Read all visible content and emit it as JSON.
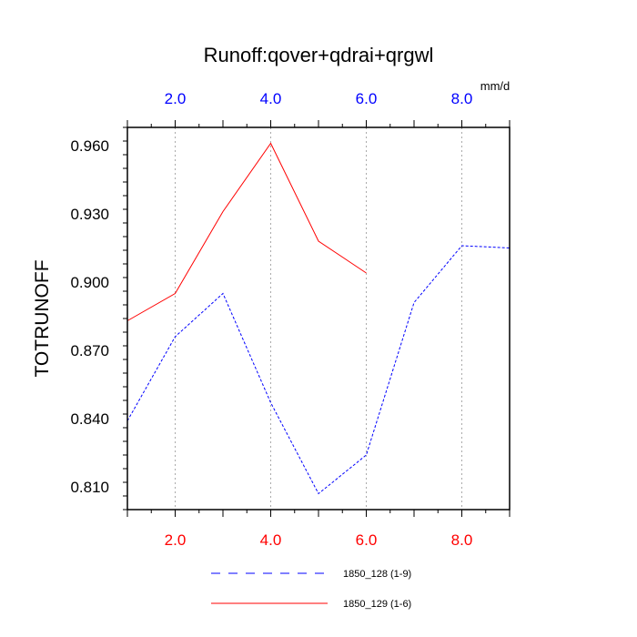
{
  "chart_data": {
    "type": "line",
    "title": "Runoff:qover+qdrai+qrgwl",
    "ylabel": "TOTRUNOFF",
    "units_label": "mm/d",
    "xlim": [
      1,
      9
    ],
    "ylim": [
      0.8,
      0.968
    ],
    "y_ticks": [
      0.81,
      0.84,
      0.87,
      0.9,
      0.93,
      0.96
    ],
    "y_tick_labels": [
      "0.810",
      "0.840",
      "0.870",
      "0.900",
      "0.930",
      "0.960"
    ],
    "x_ticks": [
      2,
      4,
      6,
      8
    ],
    "x_tick_labels": [
      "2.0",
      "4.0",
      "6.0",
      "8.0"
    ],
    "top_tick_color": "#0000ff",
    "bottom_tick_color": "#ff0000",
    "grid": "vertical-dashed",
    "series": [
      {
        "name": "1850_128 (1-9)",
        "color": "#0000ff",
        "dash": "dashed",
        "x": [
          1,
          2,
          3,
          4,
          5,
          6,
          7,
          8,
          9
        ],
        "y": [
          0.839,
          0.876,
          0.895,
          0.847,
          0.807,
          0.824,
          0.891,
          0.916,
          0.915
        ]
      },
      {
        "name": "1850_129 (1-6)",
        "color": "#ff0000",
        "dash": "solid",
        "x": [
          1,
          2,
          3,
          4,
          5,
          6
        ],
        "y": [
          0.883,
          0.895,
          0.931,
          0.961,
          0.918,
          0.904
        ]
      }
    ]
  }
}
